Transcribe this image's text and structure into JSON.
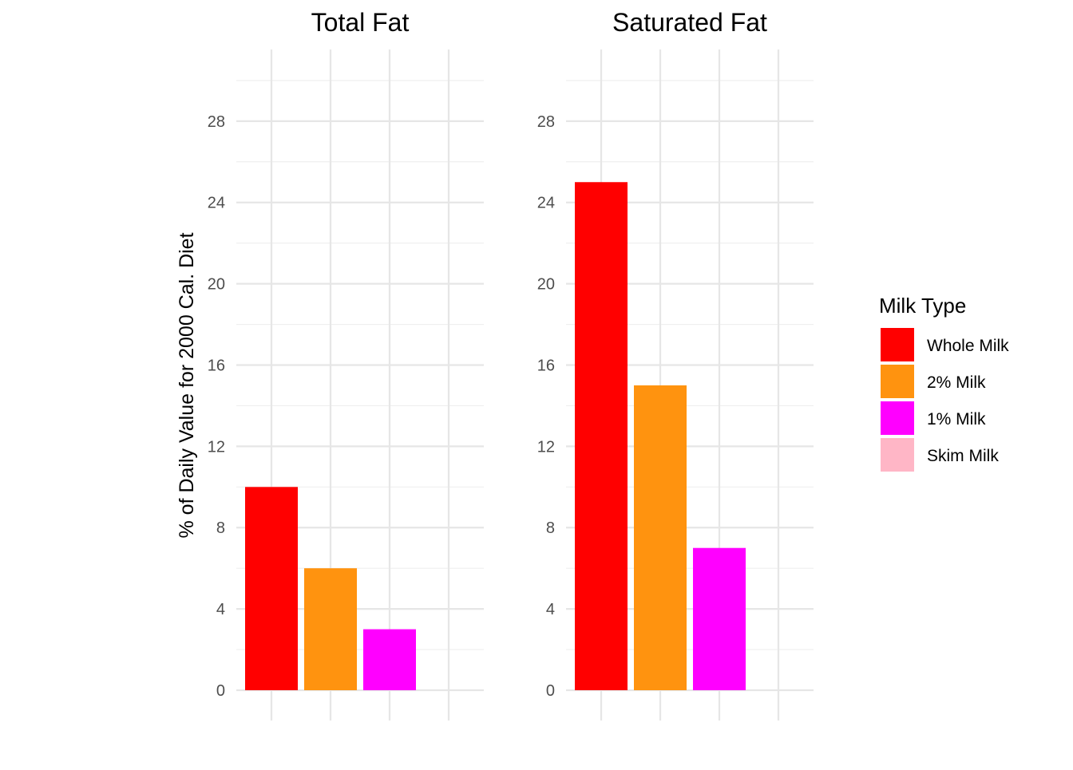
{
  "chart_data": {
    "type": "bar",
    "facets": [
      {
        "title": "Total Fat",
        "values": [
          10,
          6,
          3,
          0
        ]
      },
      {
        "title": "Saturated Fat",
        "values": [
          25,
          15,
          7,
          0
        ]
      }
    ],
    "categories": [
      "Whole Milk",
      "2% Milk",
      "1% Milk",
      "Skim Milk"
    ],
    "colors": [
      "#ff0000",
      "#ff930f",
      "#ff00ff",
      "#ffb6c6"
    ],
    "xlabel": "",
    "ylabel": "% of Daily Value for 2000 Cal. Diet",
    "y_ticks": [
      0,
      4,
      8,
      12,
      16,
      20,
      24,
      28
    ],
    "ylim": [
      0,
      30
    ],
    "grid": true,
    "legend": {
      "title": "Milk Type",
      "placement": "right",
      "entries": [
        "Whole Milk",
        "2% Milk",
        "1% Milk",
        "Skim Milk"
      ]
    }
  }
}
